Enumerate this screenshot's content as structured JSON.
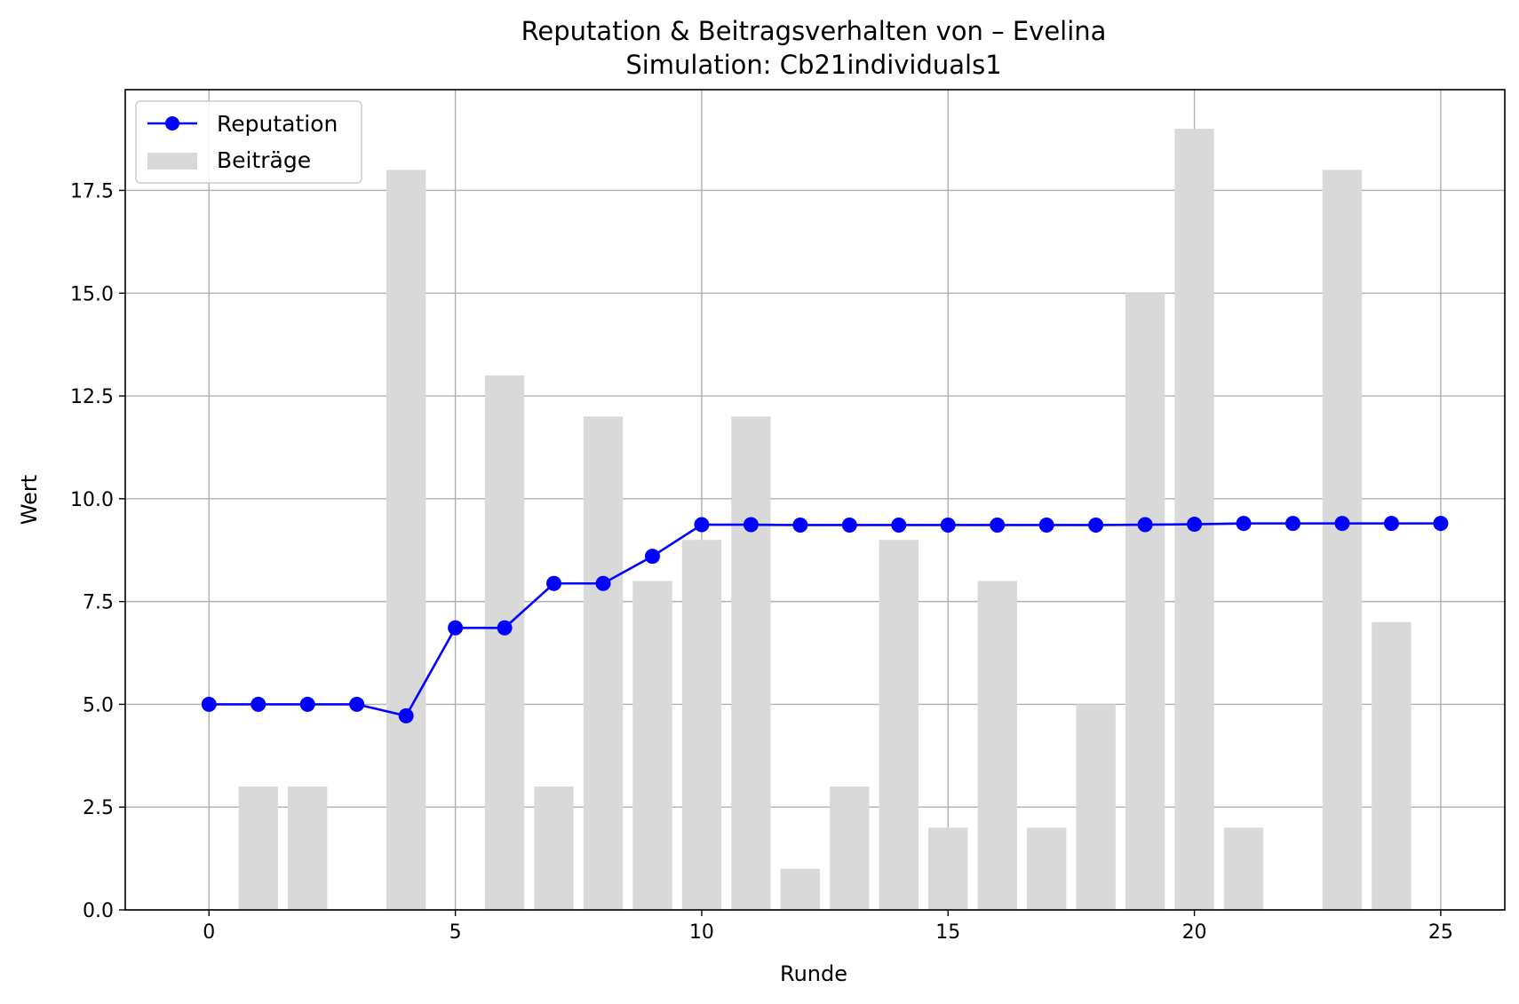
{
  "chart_data": {
    "type": "bar+line",
    "title": "Reputation & Beitragsverhalten von – Evelina",
    "subtitle": "Simulation: Cb21individuals1",
    "xlabel": "Runde",
    "ylabel": "Wert",
    "xlim": [
      -1.7,
      26.3
    ],
    "ylim": [
      0,
      19.95
    ],
    "x_ticks": [
      0,
      5,
      10,
      15,
      20,
      25
    ],
    "y_ticks": [
      0.0,
      2.5,
      5.0,
      7.5,
      10.0,
      12.5,
      15.0,
      17.5
    ],
    "x_tick_labels": [
      "0",
      "5",
      "10",
      "15",
      "20",
      "25"
    ],
    "y_tick_labels": [
      "0.0",
      "2.5",
      "5.0",
      "7.5",
      "10.0",
      "12.5",
      "15.0",
      "17.5"
    ],
    "grid": true,
    "legend_position": "upper-left",
    "series": [
      {
        "name": "Reputation",
        "kind": "line",
        "color": "#0000ff",
        "x": [
          0,
          1,
          2,
          3,
          4,
          5,
          6,
          7,
          8,
          9,
          10,
          11,
          12,
          13,
          14,
          15,
          16,
          17,
          18,
          19,
          20,
          21,
          22,
          23,
          24,
          25
        ],
        "values": [
          5.0,
          5.0,
          5.0,
          5.0,
          4.72,
          6.86,
          6.86,
          7.94,
          7.94,
          8.6,
          9.37,
          9.37,
          9.36,
          9.36,
          9.36,
          9.36,
          9.36,
          9.36,
          9.36,
          9.37,
          9.38,
          9.4,
          9.4,
          9.4,
          9.4,
          9.4
        ]
      },
      {
        "name": "Beiträge",
        "kind": "bar",
        "color": "#d9d9d9",
        "x": [
          0,
          1,
          2,
          3,
          4,
          5,
          6,
          7,
          8,
          9,
          10,
          11,
          12,
          13,
          14,
          15,
          16,
          17,
          18,
          19,
          20,
          21,
          22,
          23,
          24,
          25
        ],
        "values": [
          0,
          3,
          3,
          0,
          18,
          0,
          13,
          3,
          12,
          8,
          9,
          12,
          1,
          3,
          9,
          2,
          8,
          2,
          5,
          15,
          19,
          2,
          0,
          18,
          7,
          0
        ]
      }
    ]
  }
}
